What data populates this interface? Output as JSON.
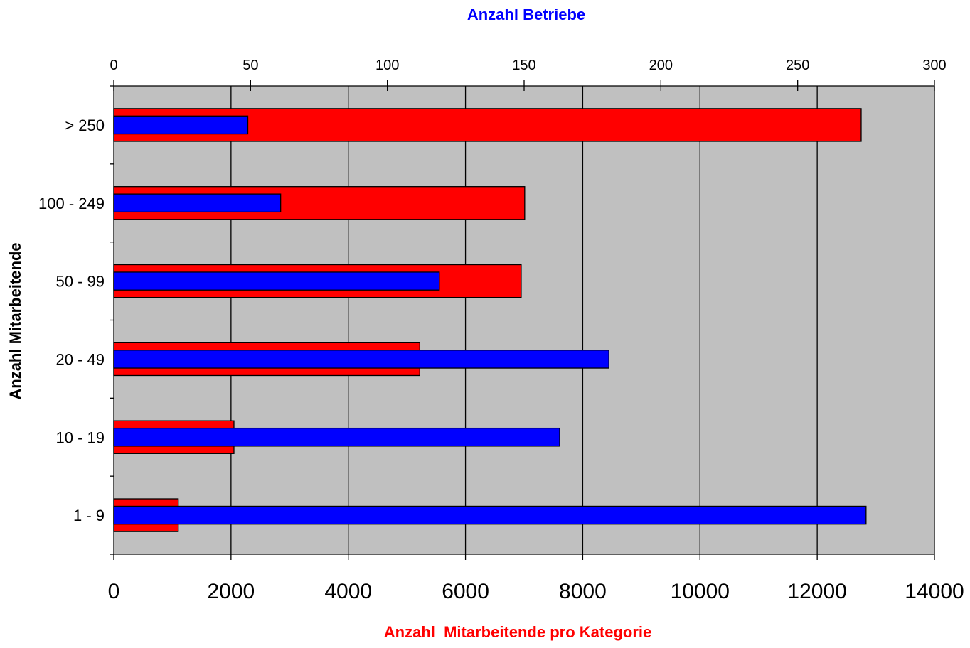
{
  "chart_data": {
    "type": "bar",
    "orientation": "horizontal",
    "categories": [
      "1 - 9",
      "10 - 19",
      "20 - 49",
      "50 - 99",
      "100 - 249",
      "> 250"
    ],
    "series": [
      {
        "name": "",
        "axis": "bottom",
        "color": "#ff0000",
        "values": [
          1100,
          2050,
          5220,
          6950,
          7010,
          12750
        ]
      },
      {
        "name": "",
        "axis": "top",
        "color": "#0000ff",
        "values": [
          275,
          163,
          181,
          119,
          61,
          49
        ]
      }
    ],
    "x_bottom": {
      "label": "Anzahl  Mitarbeitende pro Kategorie",
      "label_color": "#ff0000",
      "range": [
        0,
        14000
      ],
      "ticks": [
        "0",
        "2000",
        "4000",
        "6000",
        "8000",
        "10000",
        "12000",
        "14000"
      ]
    },
    "x_top": {
      "label": "Anzahl Betriebe",
      "label_color": "#0000ff",
      "range": [
        0,
        300
      ],
      "ticks": [
        "0",
        "50",
        "100",
        "150",
        "200",
        "250",
        "300"
      ]
    },
    "y_axis": {
      "label": "Anzahl Mitarbeitende"
    },
    "plot_background": "#c0c0c0",
    "grid": true
  }
}
